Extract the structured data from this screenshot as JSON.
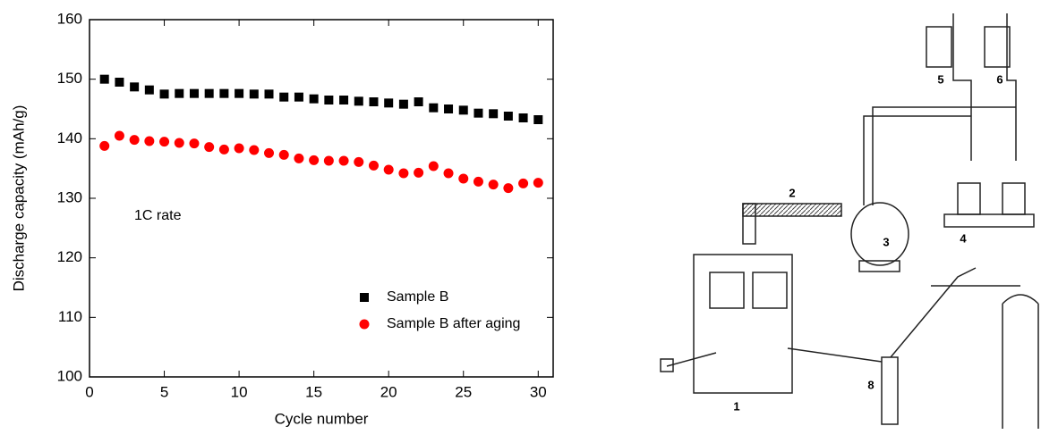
{
  "chart_data": {
    "type": "scatter",
    "x_label": "Cycle number",
    "y_label": "Discharge capacity (mAh/g)",
    "annotation": "1C rate",
    "x": [
      1,
      2,
      3,
      4,
      5,
      6,
      7,
      8,
      9,
      10,
      11,
      12,
      13,
      14,
      15,
      16,
      17,
      18,
      19,
      20,
      21,
      22,
      23,
      24,
      25,
      26,
      27,
      28,
      29,
      30
    ],
    "series": [
      {
        "name": "Sample B",
        "color": "#000000",
        "marker": "square",
        "values": [
          150,
          149.5,
          148.7,
          148.2,
          147.5,
          147.6,
          147.6,
          147.6,
          147.6,
          147.6,
          147.5,
          147.5,
          147,
          147,
          146.7,
          146.5,
          146.5,
          146.3,
          146.2,
          146,
          145.8,
          146.2,
          145.2,
          145,
          144.8,
          144.3,
          144.2,
          143.8,
          143.5,
          143.2
        ]
      },
      {
        "name": "Sample B after aging",
        "color": "#ff0000",
        "marker": "circle",
        "values": [
          138.8,
          140.5,
          139.8,
          139.6,
          139.5,
          139.3,
          139.2,
          138.6,
          138.2,
          138.4,
          138.1,
          137.6,
          137.3,
          136.7,
          136.4,
          136.3,
          136.3,
          136.1,
          135.5,
          134.8,
          134.2,
          134.3,
          135.4,
          134.2,
          133.3,
          132.8,
          132.3,
          131.7,
          132.5,
          132.6
        ]
      }
    ],
    "xlim": [
      0,
      31
    ],
    "xticks": [
      0,
      5,
      10,
      15,
      20,
      25,
      30
    ],
    "ylim": [
      100,
      160
    ],
    "yticks": [
      100,
      110,
      120,
      130,
      140,
      150,
      160
    ],
    "legend": "lower-right"
  },
  "diagram": {
    "labels": [
      "1",
      "2",
      "3",
      "4",
      "5",
      "6",
      "8"
    ]
  }
}
